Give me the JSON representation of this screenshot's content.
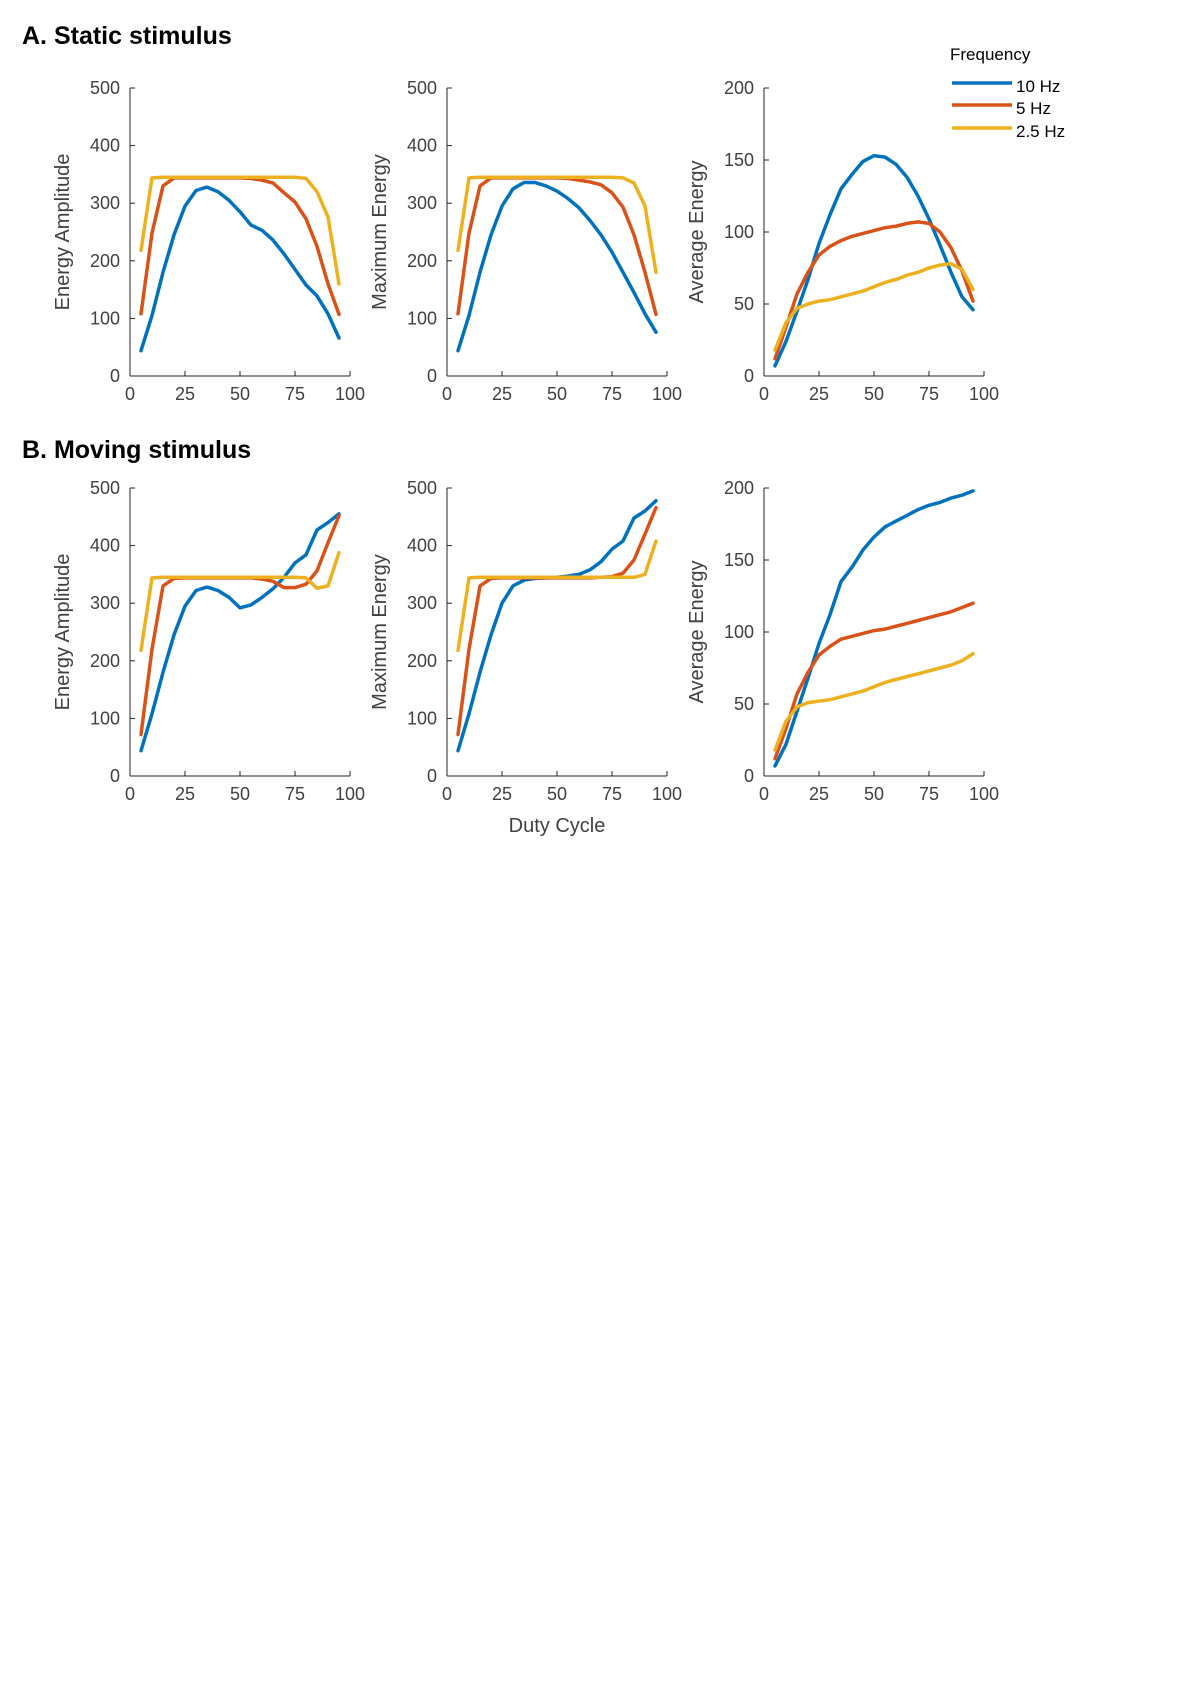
{
  "figure": {
    "panel_titles": [
      "A. Static stimulus",
      "B. Moving stimulus"
    ],
    "shared_xlabel": "Duty Cycle",
    "legend": {
      "title": "Frequency",
      "placement": "top-right",
      "entries": [
        {
          "label": "10 Hz",
          "color": "#0072BD"
        },
        {
          "label": "5 Hz",
          "color": "#D95319"
        },
        {
          "label": "2.5 Hz",
          "color": "#EDB120"
        }
      ]
    }
  },
  "chart_data": [
    {
      "type": "line",
      "row": "A",
      "col": 1,
      "xlabel": "",
      "ylabel": "Energy Amplitude",
      "xlim": [
        0,
        100
      ],
      "ylim": [
        0,
        500
      ],
      "xticks": [
        0,
        25,
        50,
        75,
        100
      ],
      "yticks": [
        0,
        100,
        200,
        300,
        400,
        500
      ],
      "x": [
        5,
        10,
        15,
        20,
        25,
        30,
        35,
        40,
        45,
        50,
        55,
        60,
        65,
        70,
        75,
        80,
        85,
        90,
        95
      ],
      "series": [
        {
          "name": "10 Hz",
          "color": "#0072BD",
          "values": [
            44,
            105,
            180,
            245,
            295,
            322,
            328,
            320,
            305,
            285,
            262,
            253,
            236,
            212,
            185,
            158,
            139,
            108,
            66
          ]
        },
        {
          "name": "5 Hz",
          "color": "#D95319",
          "values": [
            108,
            248,
            330,
            344,
            344,
            344,
            344,
            344,
            344,
            344,
            343,
            340,
            335,
            318,
            302,
            273,
            225,
            160,
            107
          ]
        },
        {
          "name": "2.5 Hz",
          "color": "#EDB120",
          "values": [
            218,
            344,
            345,
            345,
            345,
            345,
            345,
            345,
            345,
            345,
            345,
            345,
            345,
            345,
            345,
            343,
            320,
            276,
            160
          ]
        }
      ]
    },
    {
      "type": "line",
      "row": "A",
      "col": 2,
      "xlabel": "",
      "ylabel": "Maximum Energy",
      "xlim": [
        0,
        100
      ],
      "ylim": [
        0,
        500
      ],
      "xticks": [
        0,
        25,
        50,
        75,
        100
      ],
      "yticks": [
        0,
        100,
        200,
        300,
        400,
        500
      ],
      "x": [
        5,
        10,
        15,
        20,
        25,
        30,
        35,
        40,
        45,
        50,
        55,
        60,
        65,
        70,
        75,
        80,
        85,
        90,
        95
      ],
      "series": [
        {
          "name": "10 Hz",
          "color": "#0072BD",
          "values": [
            44,
            105,
            180,
            245,
            295,
            325,
            336,
            336,
            330,
            321,
            308,
            292,
            270,
            245,
            215,
            180,
            145,
            108,
            76
          ]
        },
        {
          "name": "5 Hz",
          "color": "#D95319",
          "values": [
            108,
            248,
            330,
            344,
            344,
            344,
            344,
            344,
            344,
            344,
            343,
            340,
            337,
            332,
            318,
            293,
            245,
            180,
            107
          ]
        },
        {
          "name": "2.5 Hz",
          "color": "#EDB120",
          "values": [
            218,
            344,
            345,
            345,
            345,
            345,
            345,
            345,
            345,
            345,
            345,
            345,
            345,
            345,
            345,
            344,
            335,
            295,
            180
          ]
        }
      ]
    },
    {
      "type": "line",
      "row": "A",
      "col": 3,
      "xlabel": "",
      "ylabel": "Average Energy",
      "xlim": [
        0,
        100
      ],
      "ylim": [
        0,
        200
      ],
      "xticks": [
        0,
        25,
        50,
        75,
        100
      ],
      "yticks": [
        0,
        50,
        100,
        150,
        200
      ],
      "x": [
        5,
        10,
        15,
        20,
        25,
        30,
        35,
        40,
        45,
        50,
        55,
        60,
        65,
        70,
        75,
        80,
        85,
        90,
        95
      ],
      "series": [
        {
          "name": "10 Hz",
          "color": "#0072BD",
          "values": [
            7,
            24,
            45,
            67,
            92,
            112,
            130,
            140,
            149,
            153,
            152,
            147,
            138,
            125,
            109,
            91,
            72,
            55,
            46
          ]
        },
        {
          "name": "5 Hz",
          "color": "#D95319",
          "values": [
            12,
            34,
            57,
            72,
            84,
            90,
            94,
            97,
            99,
            101,
            103,
            104,
            106,
            107,
            106,
            100,
            89,
            73,
            52
          ]
        },
        {
          "name": "2.5 Hz",
          "color": "#EDB120",
          "values": [
            18,
            37,
            47,
            50,
            52,
            53,
            55,
            57,
            59,
            62,
            65,
            67,
            70,
            72,
            75,
            77,
            78,
            74,
            60
          ]
        }
      ]
    },
    {
      "type": "line",
      "row": "B",
      "col": 1,
      "xlabel": "",
      "ylabel": "Energy Amplitude",
      "xlim": [
        0,
        100
      ],
      "ylim": [
        0,
        500
      ],
      "xticks": [
        0,
        25,
        50,
        75,
        100
      ],
      "yticks": [
        0,
        100,
        200,
        300,
        400,
        500
      ],
      "x": [
        5,
        10,
        15,
        20,
        25,
        30,
        35,
        40,
        45,
        50,
        55,
        60,
        65,
        70,
        75,
        80,
        85,
        90,
        95
      ],
      "series": [
        {
          "name": "10 Hz",
          "color": "#0072BD",
          "values": [
            44,
            108,
            180,
            245,
            295,
            322,
            328,
            322,
            310,
            292,
            297,
            310,
            325,
            345,
            370,
            384,
            427,
            440,
            455
          ]
        },
        {
          "name": "5 Hz",
          "color": "#D95319",
          "values": [
            72,
            220,
            330,
            343,
            344,
            344,
            344,
            344,
            344,
            344,
            344,
            342,
            338,
            327,
            327,
            333,
            356,
            405,
            452
          ]
        },
        {
          "name": "2.5 Hz",
          "color": "#EDB120",
          "values": [
            218,
            344,
            345,
            345,
            345,
            345,
            345,
            345,
            345,
            345,
            345,
            345,
            345,
            345,
            345,
            344,
            326,
            330,
            388
          ]
        }
      ]
    },
    {
      "type": "line",
      "row": "B",
      "col": 2,
      "xlabel": "Duty Cycle",
      "ylabel": "Maximum Energy",
      "xlim": [
        0,
        100
      ],
      "ylim": [
        0,
        500
      ],
      "xticks": [
        0,
        25,
        50,
        75,
        100
      ],
      "yticks": [
        0,
        100,
        200,
        300,
        400,
        500
      ],
      "x": [
        5,
        10,
        15,
        20,
        25,
        30,
        35,
        40,
        45,
        50,
        55,
        60,
        65,
        70,
        75,
        80,
        85,
        90,
        95
      ],
      "series": [
        {
          "name": "10 Hz",
          "color": "#0072BD",
          "values": [
            44,
            108,
            180,
            245,
            300,
            330,
            340,
            343,
            344,
            345,
            347,
            350,
            358,
            372,
            394,
            408,
            448,
            460,
            478
          ]
        },
        {
          "name": "5 Hz",
          "color": "#D95319",
          "values": [
            72,
            220,
            330,
            343,
            344,
            344,
            344,
            344,
            344,
            344,
            344,
            344,
            344,
            345,
            346,
            352,
            375,
            420,
            466
          ]
        },
        {
          "name": "2.5 Hz",
          "color": "#EDB120",
          "values": [
            218,
            344,
            345,
            345,
            345,
            345,
            345,
            345,
            345,
            345,
            345,
            345,
            345,
            345,
            345,
            345,
            345,
            350,
            408
          ]
        }
      ]
    },
    {
      "type": "line",
      "row": "B",
      "col": 3,
      "xlabel": "",
      "ylabel": "Average Energy",
      "xlim": [
        0,
        100
      ],
      "ylim": [
        0,
        200
      ],
      "xticks": [
        0,
        25,
        50,
        75,
        100
      ],
      "yticks": [
        0,
        50,
        100,
        150,
        200
      ],
      "x": [
        5,
        10,
        15,
        20,
        25,
        30,
        35,
        40,
        45,
        50,
        55,
        60,
        65,
        70,
        75,
        80,
        85,
        90,
        95
      ],
      "series": [
        {
          "name": "10 Hz",
          "color": "#0072BD",
          "values": [
            7,
            22,
            45,
            68,
            92,
            112,
            135,
            145,
            157,
            166,
            173,
            177,
            181,
            185,
            188,
            190,
            193,
            195,
            198
          ]
        },
        {
          "name": "5 Hz",
          "color": "#D95319",
          "values": [
            12,
            33,
            57,
            72,
            84,
            90,
            95,
            97,
            99,
            101,
            102,
            104,
            106,
            108,
            110,
            112,
            114,
            117,
            120
          ]
        },
        {
          "name": "2.5 Hz",
          "color": "#EDB120",
          "values": [
            18,
            38,
            48,
            51,
            52,
            53,
            55,
            57,
            59,
            62,
            65,
            67,
            69,
            71,
            73,
            75,
            77,
            80,
            85
          ]
        }
      ]
    }
  ]
}
